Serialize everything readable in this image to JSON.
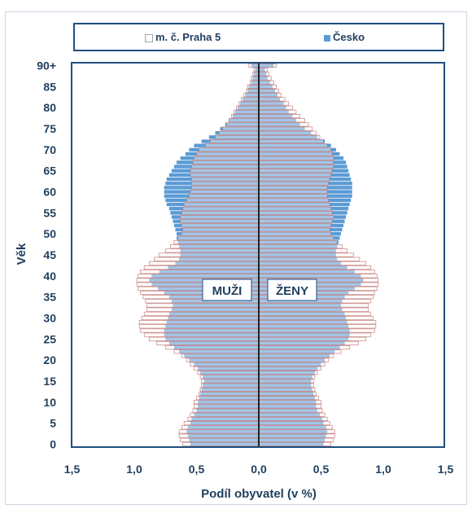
{
  "legend": {
    "items": [
      {
        "label": "m. č. Praha 5",
        "color": "#ffffff"
      },
      {
        "label": "Česko",
        "color": "#5b9bd5"
      }
    ]
  },
  "chart_data": {
    "type": "bar",
    "orientation": "horizontal-pyramid",
    "xlabel": "Podíl obyvatel (v %)",
    "ylabel": "Věk",
    "x_ticks": [
      "1,5",
      "1,0",
      "0,5",
      "0,0",
      "0,5",
      "1,0",
      "1,5"
    ],
    "xlim": [
      -1.5,
      1.5
    ],
    "y_ticks": [
      "0",
      "5",
      "10",
      "15",
      "20",
      "25",
      "30",
      "35",
      "40",
      "45",
      "50",
      "55",
      "60",
      "65",
      "70",
      "75",
      "80",
      "85",
      "90+"
    ],
    "ages": [
      0,
      1,
      2,
      3,
      4,
      5,
      6,
      7,
      8,
      9,
      10,
      11,
      12,
      13,
      14,
      15,
      16,
      17,
      18,
      19,
      20,
      21,
      22,
      23,
      24,
      25,
      26,
      27,
      28,
      29,
      30,
      31,
      32,
      33,
      34,
      35,
      36,
      37,
      38,
      39,
      40,
      41,
      42,
      43,
      44,
      45,
      46,
      47,
      48,
      49,
      50,
      51,
      52,
      53,
      54,
      55,
      56,
      57,
      58,
      59,
      60,
      61,
      62,
      63,
      64,
      65,
      66,
      67,
      68,
      69,
      70,
      71,
      72,
      73,
      74,
      75,
      76,
      77,
      78,
      79,
      80,
      81,
      82,
      83,
      84,
      85,
      86,
      87,
      88,
      89,
      90
    ],
    "labels": {
      "left": "MUŽI",
      "right": "ŽENY"
    },
    "series": [
      {
        "name": "m. č. Praha 5",
        "color": "#ffffff",
        "men": [
          0.61,
          0.63,
          0.64,
          0.64,
          0.62,
          0.6,
          0.57,
          0.55,
          0.53,
          0.52,
          0.52,
          0.5,
          0.48,
          0.47,
          0.46,
          0.46,
          0.47,
          0.49,
          0.52,
          0.55,
          0.58,
          0.62,
          0.68,
          0.75,
          0.82,
          0.88,
          0.92,
          0.95,
          0.96,
          0.96,
          0.94,
          0.92,
          0.9,
          0.9,
          0.91,
          0.93,
          0.95,
          0.97,
          0.98,
          0.98,
          0.97,
          0.95,
          0.92,
          0.88,
          0.84,
          0.8,
          0.75,
          0.71,
          0.68,
          0.65,
          0.62,
          0.61,
          0.62,
          0.63,
          0.63,
          0.62,
          0.61,
          0.6,
          0.58,
          0.56,
          0.55,
          0.54,
          0.54,
          0.54,
          0.55,
          0.55,
          0.54,
          0.53,
          0.52,
          0.5,
          0.48,
          0.43,
          0.39,
          0.35,
          0.32,
          0.29,
          0.26,
          0.24,
          0.22,
          0.2,
          0.18,
          0.16,
          0.14,
          0.12,
          0.1,
          0.09,
          0.07,
          0.06,
          0.05,
          0.04,
          0.08
        ],
        "women": [
          0.58,
          0.6,
          0.61,
          0.61,
          0.59,
          0.57,
          0.55,
          0.53,
          0.51,
          0.5,
          0.5,
          0.48,
          0.46,
          0.45,
          0.44,
          0.44,
          0.45,
          0.47,
          0.5,
          0.53,
          0.56,
          0.6,
          0.66,
          0.73,
          0.8,
          0.86,
          0.9,
          0.93,
          0.94,
          0.94,
          0.92,
          0.9,
          0.88,
          0.88,
          0.9,
          0.92,
          0.93,
          0.95,
          0.96,
          0.96,
          0.95,
          0.93,
          0.9,
          0.86,
          0.81,
          0.76,
          0.71,
          0.67,
          0.63,
          0.6,
          0.58,
          0.57,
          0.58,
          0.59,
          0.6,
          0.59,
          0.58,
          0.57,
          0.56,
          0.55,
          0.55,
          0.55,
          0.56,
          0.57,
          0.58,
          0.59,
          0.6,
          0.6,
          0.6,
          0.59,
          0.58,
          0.55,
          0.52,
          0.49,
          0.46,
          0.43,
          0.4,
          0.37,
          0.33,
          0.3,
          0.27,
          0.24,
          0.21,
          0.18,
          0.16,
          0.14,
          0.12,
          0.1,
          0.08,
          0.07,
          0.14
        ]
      },
      {
        "name": "Česko",
        "color": "#5b9bd5",
        "men": [
          0.55,
          0.56,
          0.57,
          0.58,
          0.57,
          0.55,
          0.54,
          0.52,
          0.5,
          0.49,
          0.49,
          0.48,
          0.47,
          0.46,
          0.45,
          0.44,
          0.45,
          0.47,
          0.49,
          0.52,
          0.56,
          0.6,
          0.64,
          0.68,
          0.72,
          0.75,
          0.76,
          0.76,
          0.75,
          0.74,
          0.73,
          0.72,
          0.7,
          0.69,
          0.7,
          0.72,
          0.76,
          0.81,
          0.86,
          0.88,
          0.86,
          0.8,
          0.73,
          0.67,
          0.64,
          0.63,
          0.63,
          0.64,
          0.65,
          0.66,
          0.66,
          0.67,
          0.68,
          0.69,
          0.7,
          0.71,
          0.72,
          0.74,
          0.75,
          0.76,
          0.76,
          0.76,
          0.75,
          0.74,
          0.72,
          0.7,
          0.68,
          0.66,
          0.63,
          0.59,
          0.56,
          0.52,
          0.46,
          0.4,
          0.35,
          0.31,
          0.27,
          0.24,
          0.21,
          0.19,
          0.17,
          0.15,
          0.13,
          0.11,
          0.09,
          0.08,
          0.06,
          0.05,
          0.04,
          0.03,
          0.06
        ],
        "women": [
          0.52,
          0.53,
          0.54,
          0.55,
          0.54,
          0.52,
          0.51,
          0.49,
          0.47,
          0.46,
          0.46,
          0.45,
          0.44,
          0.43,
          0.42,
          0.42,
          0.43,
          0.45,
          0.47,
          0.5,
          0.53,
          0.57,
          0.61,
          0.65,
          0.69,
          0.72,
          0.73,
          0.73,
          0.72,
          0.71,
          0.7,
          0.69,
          0.67,
          0.66,
          0.67,
          0.69,
          0.72,
          0.77,
          0.82,
          0.84,
          0.82,
          0.77,
          0.71,
          0.66,
          0.63,
          0.62,
          0.62,
          0.63,
          0.64,
          0.65,
          0.66,
          0.67,
          0.68,
          0.69,
          0.7,
          0.71,
          0.72,
          0.73,
          0.74,
          0.75,
          0.75,
          0.75,
          0.75,
          0.74,
          0.73,
          0.72,
          0.71,
          0.7,
          0.68,
          0.65,
          0.62,
          0.58,
          0.53,
          0.47,
          0.42,
          0.37,
          0.33,
          0.3,
          0.27,
          0.24,
          0.22,
          0.2,
          0.17,
          0.15,
          0.13,
          0.11,
          0.09,
          0.07,
          0.06,
          0.05,
          0.12
        ]
      }
    ]
  }
}
